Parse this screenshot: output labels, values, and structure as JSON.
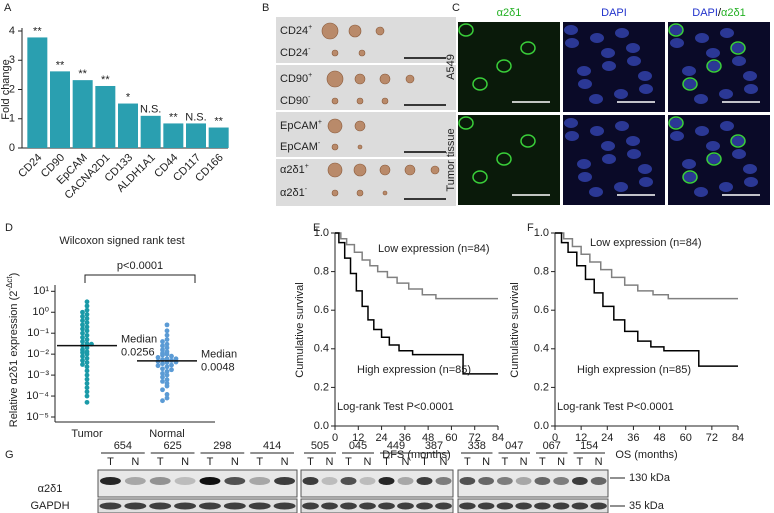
{
  "panel_letters": [
    "A",
    "B",
    "C",
    "D",
    "E",
    "F",
    "G"
  ],
  "chart_data": [
    {
      "type": "bar",
      "y_label": "Fold change",
      "categories": [
        "CD24",
        "CD90",
        "EpCAM",
        "CACNA2D1",
        "CD133",
        "ALDH1A1",
        "CD44",
        "CD117",
        "CD166"
      ],
      "values": [
        3.78,
        2.62,
        2.32,
        2.12,
        1.52,
        1.1,
        0.84,
        0.84,
        0.7
      ],
      "annotations": [
        "**",
        "**",
        "**",
        "**",
        "*",
        "N.S.",
        "**",
        "N.S.",
        "**"
      ],
      "color": "#2a9fb0",
      "ylim": [
        0,
        4
      ],
      "yticks": [
        0,
        1,
        2,
        3,
        4
      ]
    },
    {
      "type": "scatter",
      "title": "Wilcoxon signed rank test",
      "p_value_label": "p<0.0001",
      "y_label_parts": [
        "Relative α2δ1 expression (2",
        "-Δct",
        ")"
      ],
      "categories": [
        "Tumor",
        "Normal"
      ],
      "series": [
        {
          "color": "#1a9aa8",
          "values": [
            3.16,
            2,
            1.26,
            1,
            0.79,
            0.63,
            0.5,
            0.4,
            0.32,
            0.25,
            0.2,
            0.16,
            0.13,
            0.1,
            0.079,
            0.063,
            0.05,
            0.04,
            0.032,
            0.025,
            0.02,
            0.016,
            0.013,
            0.01,
            0.0079,
            0.0063,
            0.005,
            0.004,
            0.0032,
            0.0025,
            0.0016,
            0.001,
            0.00063,
            0.0004,
            0.00025,
            0.00016,
            0.0001,
            5e-05,
            0.03,
            0.012
          ]
        },
        {
          "color": "#5b9bd5",
          "values": [
            0.25,
            0.13,
            0.08,
            0.05,
            0.04,
            0.03,
            0.025,
            0.02,
            0.016,
            0.013,
            0.011,
            0.01,
            0.009,
            0.008,
            0.007,
            0.006,
            0.0055,
            0.005,
            0.0045,
            0.004,
            0.0035,
            0.003,
            0.0028,
            0.0025,
            0.002,
            0.0018,
            0.0015,
            0.0012,
            0.001,
            0.0008,
            0.0006,
            0.0005,
            0.0004,
            0.0003,
            0.0002,
            0.00012,
            8e-05,
            6e-05,
            0.006,
            0.0042
          ]
        }
      ],
      "medians": [
        0.0256,
        0.0048
      ],
      "median_label": "Median",
      "log_scale": true,
      "ylim": [
        1e-05,
        20
      ],
      "yticks": [
        {
          "value": 1e-05,
          "label": "10⁻⁵"
        },
        {
          "value": 0.0001,
          "label": "10⁻⁴"
        },
        {
          "value": 0.001,
          "label": "10⁻³"
        },
        {
          "value": 0.01,
          "label": "10⁻²"
        },
        {
          "value": 0.1,
          "label": "10⁻¹"
        },
        {
          "value": 1,
          "label": "10⁰"
        },
        {
          "value": 10,
          "label": "10¹"
        }
      ]
    },
    {
      "type": "line",
      "x_label": "DFS (months)",
      "y_label": "Cumulative survival",
      "annotation": "Log-rank Test P<0.0001",
      "series": [
        {
          "name": "Low expression (n=84)",
          "color": "#808080",
          "x": [
            0,
            3,
            3,
            6,
            6,
            10,
            10,
            14,
            14,
            18,
            18,
            22,
            22,
            27,
            27,
            32,
            32,
            38,
            38,
            45,
            45,
            52,
            52,
            84
          ],
          "values": [
            1,
            1,
            0.97,
            0.97,
            0.94,
            0.94,
            0.9,
            0.9,
            0.86,
            0.86,
            0.83,
            0.83,
            0.8,
            0.8,
            0.77,
            0.77,
            0.74,
            0.74,
            0.71,
            0.71,
            0.68,
            0.68,
            0.66,
            0.66
          ]
        },
        {
          "name": "High expression (n=85)",
          "color": "#000000",
          "x": [
            0,
            2,
            2,
            5,
            5,
            8,
            8,
            11,
            11,
            14,
            14,
            17,
            17,
            20,
            20,
            24,
            24,
            28,
            28,
            33,
            33,
            40,
            40,
            66,
            66,
            84
          ],
          "values": [
            1,
            1,
            0.95,
            0.95,
            0.87,
            0.87,
            0.79,
            0.79,
            0.7,
            0.7,
            0.62,
            0.62,
            0.55,
            0.55,
            0.5,
            0.5,
            0.46,
            0.46,
            0.42,
            0.42,
            0.39,
            0.39,
            0.37,
            0.37,
            0.27,
            0.27
          ]
        }
      ],
      "xlim": [
        0,
        84
      ],
      "xticks": [
        0,
        12,
        24,
        36,
        48,
        60,
        72,
        84
      ],
      "ylim": [
        0,
        1
      ],
      "yticks": [
        {
          "value": 0,
          "label": "0.0"
        },
        {
          "value": 0.2,
          "label": "0.2"
        },
        {
          "value": 0.4,
          "label": "0.4"
        },
        {
          "value": 0.6,
          "label": "0.6"
        },
        {
          "value": 0.8,
          "label": "0.8"
        },
        {
          "value": 1,
          "label": "1.0"
        }
      ]
    },
    {
      "type": "line",
      "x_label": "OS (months)",
      "y_label": "Cumulative survival",
      "annotation": "Log-rank Test P<0.0001",
      "series": [
        {
          "name": "Low expression (n=84)",
          "color": "#808080",
          "x": [
            0,
            4,
            4,
            8,
            8,
            12,
            12,
            16,
            16,
            21,
            21,
            26,
            26,
            32,
            32,
            38,
            38,
            45,
            45,
            52,
            52,
            84
          ],
          "values": [
            1,
            1,
            0.97,
            0.97,
            0.93,
            0.93,
            0.89,
            0.89,
            0.85,
            0.85,
            0.81,
            0.81,
            0.77,
            0.77,
            0.73,
            0.73,
            0.7,
            0.7,
            0.68,
            0.68,
            0.66,
            0.66
          ]
        },
        {
          "name": "High expression (n=85)",
          "color": "#000000",
          "x": [
            0,
            3,
            3,
            6,
            6,
            10,
            10,
            14,
            14,
            18,
            18,
            22,
            22,
            27,
            27,
            32,
            32,
            38,
            38,
            44,
            44,
            50,
            50,
            66,
            66,
            84
          ],
          "values": [
            1,
            1,
            0.95,
            0.95,
            0.9,
            0.9,
            0.83,
            0.83,
            0.76,
            0.76,
            0.69,
            0.69,
            0.62,
            0.62,
            0.55,
            0.55,
            0.49,
            0.49,
            0.44,
            0.44,
            0.41,
            0.41,
            0.39,
            0.39,
            0.31,
            0.31
          ]
        }
      ],
      "xlim": [
        0,
        84
      ],
      "xticks": [
        0,
        12,
        24,
        36,
        48,
        60,
        72,
        84
      ],
      "ylim": [
        0,
        1
      ],
      "yticks": [
        {
          "value": 0,
          "label": "0.0"
        },
        {
          "value": 0.2,
          "label": "0.2"
        },
        {
          "value": 0.4,
          "label": "0.4"
        },
        {
          "value": 0.6,
          "label": "0.6"
        },
        {
          "value": 0.8,
          "label": "0.8"
        },
        {
          "value": 1,
          "label": "1.0"
        }
      ]
    }
  ],
  "panel_b": {
    "rows": [
      {
        "marker": "CD24",
        "sign": "+"
      },
      {
        "marker": "CD24",
        "sign": "-"
      },
      {
        "marker": "CD90",
        "sign": "+"
      },
      {
        "marker": "CD90",
        "sign": "-"
      },
      {
        "marker": "EpCAM",
        "sign": "+"
      },
      {
        "marker": "EpCAM",
        "sign": "-"
      },
      {
        "marker": "α2δ1",
        "sign": "+"
      },
      {
        "marker": "α2δ1",
        "sign": "-"
      }
    ]
  },
  "panel_c": {
    "columns": [
      {
        "parts": [
          {
            "text": "α2δ1",
            "color": "#22b022"
          }
        ]
      },
      {
        "parts": [
          {
            "text": "DAPI",
            "color": "#2233cc"
          }
        ]
      },
      {
        "parts": [
          {
            "text": "DAPI",
            "color": "#2233cc"
          },
          {
            "text": "/",
            "color": "#000000"
          },
          {
            "text": "α2δ1",
            "color": "#22b022"
          }
        ]
      }
    ],
    "rows": [
      "A549",
      "Tumor tissue"
    ]
  },
  "panel_g": {
    "samples": [
      [
        "654",
        "625",
        "298",
        "414"
      ],
      [
        "505",
        "045",
        "449",
        "387"
      ],
      [
        "338",
        "047",
        "067",
        "154"
      ]
    ],
    "lanes": [
      "T",
      "N"
    ],
    "rows": [
      "α2δ1",
      "GAPDH"
    ],
    "sizes": [
      "130 kDa",
      "35 kDa"
    ]
  }
}
